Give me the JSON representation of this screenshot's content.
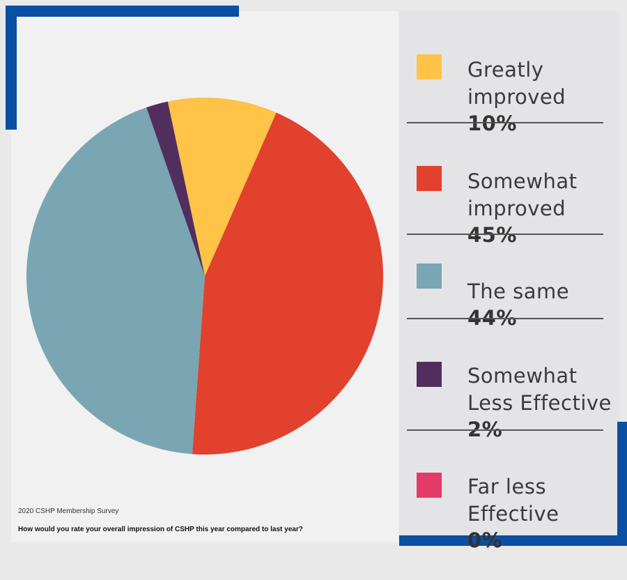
{
  "chart_data": {
    "type": "pie",
    "slices": [
      {
        "label": "Greatly improved",
        "value": 10,
        "color": "#fec347"
      },
      {
        "label": "Somewhat improved",
        "value": 45,
        "color": "#e1412d"
      },
      {
        "label": "The same",
        "value": 44,
        "color": "#7aa5b3"
      },
      {
        "label": "Somewhat Less Effective",
        "value": 2,
        "color": "#522e5e"
      },
      {
        "label": "Far less Effective",
        "value": 0,
        "color": "#e33a6a"
      }
    ]
  },
  "legend": [
    {
      "label": "Greatly\nimproved",
      "pct": "10%",
      "color": "#fec347"
    },
    {
      "label": "Somewhat\nimproved",
      "pct": "45%",
      "color": "#e1412d"
    },
    {
      "label": "The same",
      "pct": "44%",
      "color": "#7aa5b3"
    },
    {
      "label": "Somewhat\nLess Effective",
      "pct": "2%",
      "color": "#522e5e"
    },
    {
      "label": "Far less\nEffective",
      "pct": "0%",
      "color": "#e33a6a"
    }
  ],
  "footer": {
    "source": "2020 CSHP Membership Survey",
    "question": "How would you rate your overall impression of CSHP this year compared to last year?"
  }
}
